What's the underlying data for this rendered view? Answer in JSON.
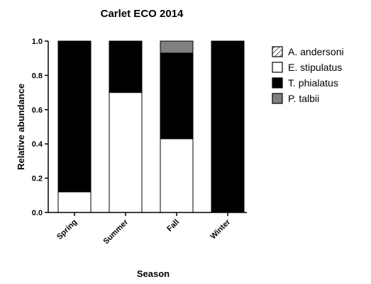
{
  "chart_data": {
    "type": "bar",
    "stacked": true,
    "title": "Carlet ECO 2014",
    "xlabel": "Season",
    "ylabel": "Relative abundance",
    "ylim": [
      0,
      1.0
    ],
    "yticks": [
      "0.0",
      "0.2",
      "0.4",
      "0.6",
      "0.8",
      "1.0"
    ],
    "grid": false,
    "legend_position": "right",
    "categories": [
      "Spring",
      "Summer",
      "Fall",
      "Winter"
    ],
    "series": [
      {
        "name": "A. andersoni",
        "values": [
          0,
          0,
          0,
          0
        ],
        "color": "#ffffff",
        "pattern": "hatch"
      },
      {
        "name": "E. stipulatus",
        "values": [
          0.12,
          0.7,
          0.43,
          0
        ],
        "color": "#ffffff",
        "pattern": "none"
      },
      {
        "name": "T. phialatus",
        "values": [
          0.88,
          0.3,
          0.5,
          1.0
        ],
        "color": "#000000",
        "pattern": "none"
      },
      {
        "name": "P. talbii",
        "values": [
          0,
          0,
          0.07,
          0
        ],
        "color": "#808080",
        "pattern": "none"
      }
    ]
  }
}
